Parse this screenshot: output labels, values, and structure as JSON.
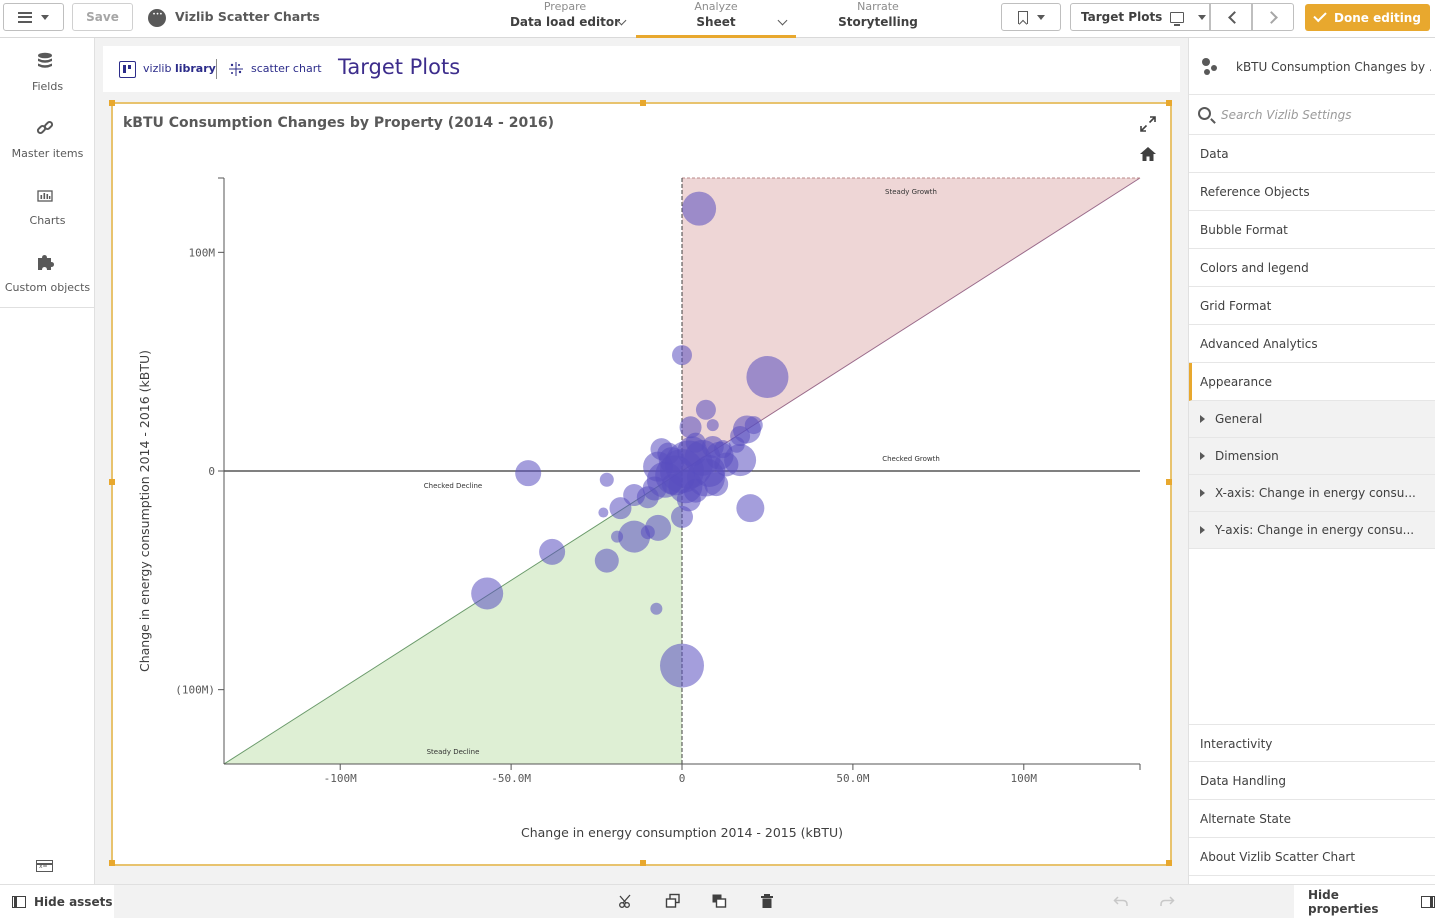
{
  "topbar": {
    "save_label": "Save",
    "app_title": "Vizlib Scatter Charts",
    "tabs": [
      {
        "small": "Prepare",
        "big": "Data load editor"
      },
      {
        "small": "Analyze",
        "big": "Sheet"
      },
      {
        "small": "Narrate",
        "big": "Storytelling"
      }
    ],
    "sheet_name": "Target Plots",
    "done_label": "Done editing",
    "accent_color": "#e8a82e"
  },
  "assets": {
    "items": [
      {
        "label": "Fields",
        "icon": "database-icon"
      },
      {
        "label": "Master items",
        "icon": "link-icon"
      },
      {
        "label": "Charts",
        "icon": "bar-chart-icon"
      },
      {
        "label": "Custom objects",
        "icon": "puzzle-icon"
      }
    ],
    "variables_icon": "variables-icon"
  },
  "canvas": {
    "brand": "vizlib",
    "brand_bold": "library",
    "extension_label": "scatter chart",
    "sheet_title": "Target Plots"
  },
  "chart": {
    "title": "kBTU Consumption Changes by Property (2014 - 2016)"
  },
  "chart_data": {
    "type": "scatter",
    "xlabel": "Change in energy consumption 2014 - 2015 (kBTU)",
    "ylabel": "Change in energy consumption 2014 - 2016 (kBTU)",
    "xlim": [
      -134000000,
      134000000
    ],
    "ylim": [
      -134000000,
      134000000
    ],
    "x_ticks": [
      {
        "value": -100000000,
        "label": "-100M"
      },
      {
        "value": -50000000,
        "label": "-50.0M"
      },
      {
        "value": 0,
        "label": "0"
      },
      {
        "value": 50000000,
        "label": "50.0M"
      },
      {
        "value": 100000000,
        "label": "100M"
      }
    ],
    "y_ticks": [
      {
        "value": 100000000,
        "label": "100M"
      },
      {
        "value": 0,
        "label": "0"
      },
      {
        "value": -100000000,
        "label": "(100M)"
      }
    ],
    "grid": false,
    "bubble_color": "#5a4fbf",
    "reference_regions": [
      {
        "label": "Steady Growth",
        "color": "#e8c8c8"
      },
      {
        "label": "Steady Decline",
        "color": "#d8eccc"
      }
    ],
    "reference_labels": [
      "Checked Growth",
      "Checked Decline"
    ],
    "points": [
      {
        "x": 5000000,
        "y": 120000000,
        "size": 17
      },
      {
        "x": 0,
        "y": 53000000,
        "size": 10
      },
      {
        "x": 25000000,
        "y": 43000000,
        "size": 21
      },
      {
        "x": 7000000,
        "y": 28000000,
        "size": 10
      },
      {
        "x": 2500000,
        "y": 20000000,
        "size": 11
      },
      {
        "x": 9000000,
        "y": 21000000,
        "size": 6
      },
      {
        "x": 19000000,
        "y": 19000000,
        "size": 14
      },
      {
        "x": 21000000,
        "y": 21000000,
        "size": 9
      },
      {
        "x": 17000000,
        "y": 16000000,
        "size": 10
      },
      {
        "x": -6000000,
        "y": 10000000,
        "size": 11
      },
      {
        "x": -45000000,
        "y": -1000000,
        "size": 13
      },
      {
        "x": -22000000,
        "y": -4000000,
        "size": 7
      },
      {
        "x": -18000000,
        "y": -17000000,
        "size": 11
      },
      {
        "x": -23000000,
        "y": -19000000,
        "size": 5
      },
      {
        "x": -14000000,
        "y": -11000000,
        "size": 11
      },
      {
        "x": -10000000,
        "y": -12000000,
        "size": 11
      },
      {
        "x": -14000000,
        "y": -30000000,
        "size": 16
      },
      {
        "x": -7000000,
        "y": -26000000,
        "size": 13
      },
      {
        "x": -10000000,
        "y": -28000000,
        "size": 7
      },
      {
        "x": -19000000,
        "y": -30000000,
        "size": 6
      },
      {
        "x": -22000000,
        "y": -41000000,
        "size": 12
      },
      {
        "x": -38000000,
        "y": -37000000,
        "size": 13
      },
      {
        "x": -57000000,
        "y": -56000000,
        "size": 16
      },
      {
        "x": -7500000,
        "y": -63000000,
        "size": 6
      },
      {
        "x": 0,
        "y": -89000000,
        "size": 22
      },
      {
        "x": 20000000,
        "y": -17000000,
        "size": 14
      },
      {
        "x": 17000000,
        "y": 5000000,
        "size": 16
      },
      {
        "x": 16000000,
        "y": 12000000,
        "size": 8
      },
      {
        "x": 0,
        "y": -21000000,
        "size": 11
      },
      {
        "x": 2000000,
        "y": -13000000,
        "size": 12
      },
      {
        "x": -3000000,
        "y": -6000000,
        "size": 10
      },
      {
        "x": 4000000,
        "y": -9000000,
        "size": 12
      },
      {
        "x": -7000000,
        "y": 2000000,
        "size": 15
      },
      {
        "x": -5000000,
        "y": -4000000,
        "size": 18
      },
      {
        "x": 0,
        "y": 0,
        "size": 22
      },
      {
        "x": 2000000,
        "y": 3000000,
        "size": 24
      },
      {
        "x": -2000000,
        "y": -2000000,
        "size": 20
      },
      {
        "x": 6000000,
        "y": 6000000,
        "size": 18
      },
      {
        "x": 8000000,
        "y": 0,
        "size": 16
      },
      {
        "x": 11000000,
        "y": 7000000,
        "size": 14
      },
      {
        "x": 3000000,
        "y": 9000000,
        "size": 15
      },
      {
        "x": -3000000,
        "y": 5000000,
        "size": 13
      },
      {
        "x": 10000000,
        "y": -6000000,
        "size": 12
      },
      {
        "x": 13000000,
        "y": 3000000,
        "size": 12
      },
      {
        "x": 1000000,
        "y": -7000000,
        "size": 17
      },
      {
        "x": -8000000,
        "y": -8000000,
        "size": 12
      },
      {
        "x": 4000000,
        "y": 13000000,
        "size": 10
      },
      {
        "x": 7000000,
        "y": -3000000,
        "size": 19
      },
      {
        "x": -4000000,
        "y": 8000000,
        "size": 11
      },
      {
        "x": 12000000,
        "y": 10000000,
        "size": 9
      },
      {
        "x": 9000000,
        "y": 11000000,
        "size": 11
      }
    ]
  },
  "properties": {
    "object_title": "kBTU Consumption Changes by ...",
    "search_placeholder": "Search Vizlib Settings",
    "sections_top": [
      "Data",
      "Reference Objects",
      "Bubble Format",
      "Colors and legend",
      "Grid Format",
      "Advanced Analytics",
      "Appearance"
    ],
    "sub_items": [
      "General",
      "Dimension",
      "X-axis: Change in energy consu...",
      "Y-axis: Change in energy consu..."
    ],
    "sections_bottom": [
      "Interactivity",
      "Data Handling",
      "Alternate State",
      "About Vizlib Scatter Chart"
    ]
  },
  "bottombar": {
    "hide_assets_label": "Hide assets",
    "hide_properties_label": "Hide properties"
  }
}
